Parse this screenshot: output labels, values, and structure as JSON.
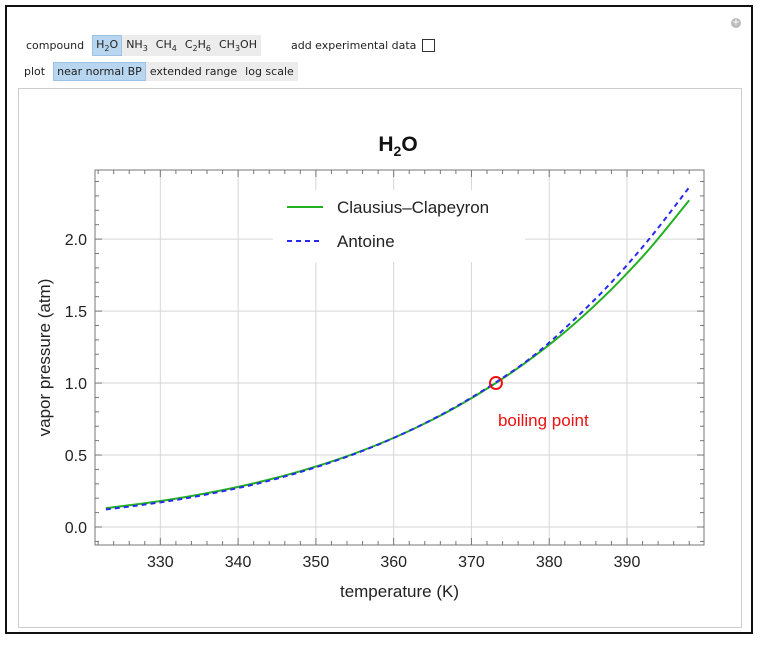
{
  "controls": {
    "compound_label": "compound",
    "compounds": [
      {
        "main": "H",
        "sub": "2",
        "rest": "O",
        "selected": true
      },
      {
        "main": "NH",
        "sub": "3",
        "rest": "",
        "selected": false
      },
      {
        "main": "CH",
        "sub": "4",
        "rest": "",
        "selected": false
      },
      {
        "main": "C",
        "sub": "2",
        "rest": "H",
        "sub2": "6",
        "selected": false
      },
      {
        "main": "CH",
        "sub": "3",
        "rest": "OH",
        "selected": false
      }
    ],
    "experimental_label": "add experimental data",
    "experimental_checked": false,
    "plot_label": "plot",
    "plot_options": [
      {
        "label": "near normal BP",
        "selected": true
      },
      {
        "label": "extended range",
        "selected": false
      },
      {
        "label": "log scale",
        "selected": false
      }
    ]
  },
  "chart_data": {
    "type": "line",
    "title_main": "H",
    "title_sub": "2",
    "title_rest": "O",
    "xlabel": "temperature (K)",
    "ylabel": "vapor pressure (atm)",
    "xlim": [
      321.6,
      399.9
    ],
    "ylim": [
      -0.125,
      2.48
    ],
    "xticks": [
      330,
      340,
      350,
      360,
      370,
      380,
      390
    ],
    "yticks": [
      "0.0",
      "0.5",
      "1.0",
      "1.5",
      "2.0"
    ],
    "grid": true,
    "legend_placement": "top-center",
    "x": [
      323,
      328,
      333,
      338,
      343,
      348,
      353,
      358,
      363,
      368,
      373,
      378,
      383,
      388,
      393,
      398
    ],
    "series": [
      {
        "name": "Clausius–Clapeyron",
        "color": "#22b022",
        "style": "solid",
        "values": [
          0.131,
          0.165,
          0.206,
          0.256,
          0.316,
          0.388,
          0.473,
          0.574,
          0.693,
          0.832,
          0.995,
          1.183,
          1.4,
          1.651,
          1.939,
          2.27
        ]
      },
      {
        "name": "Antoine",
        "color": "#2a2aee",
        "style": "dashed",
        "values": [
          0.122,
          0.156,
          0.197,
          0.248,
          0.308,
          0.382,
          0.469,
          0.572,
          0.694,
          0.836,
          1.0,
          1.19,
          1.43,
          1.7,
          2.01,
          2.36
        ]
      }
    ],
    "annotation": {
      "label": "boiling point",
      "x": 373.15,
      "y": 1.0,
      "color": "#ee1111"
    }
  }
}
